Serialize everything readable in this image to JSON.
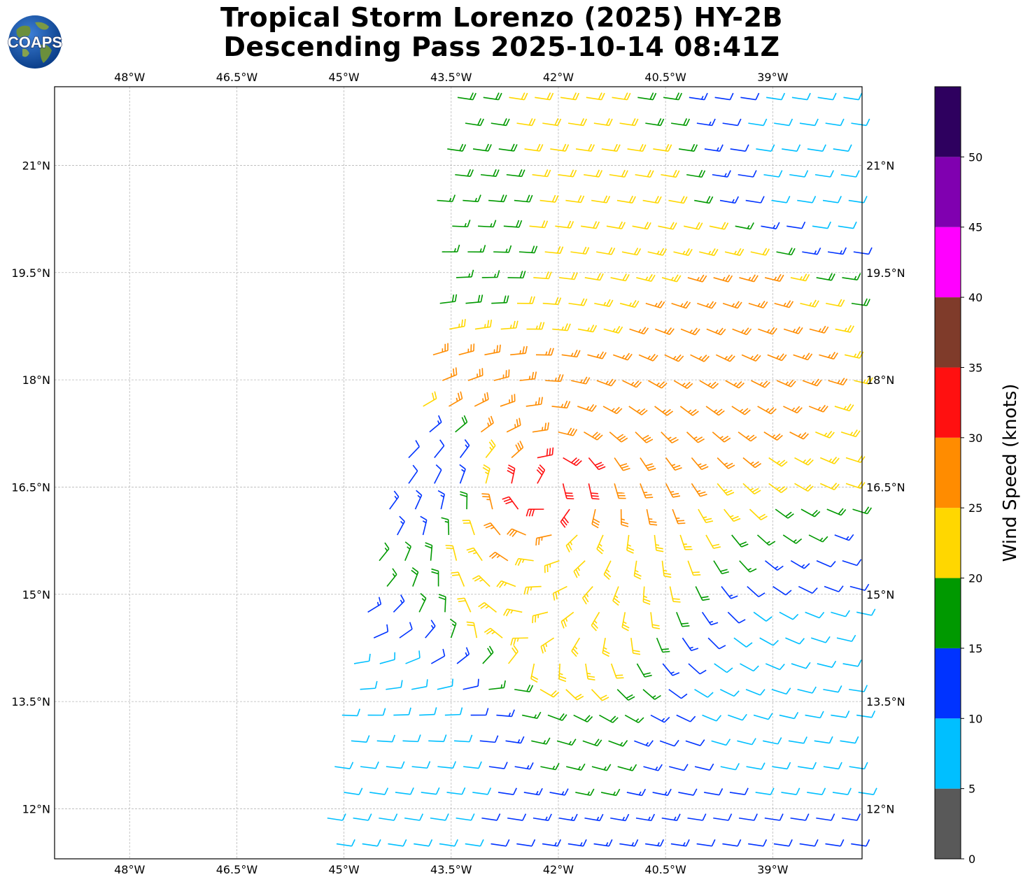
{
  "title": {
    "line1": "Tropical Storm Lorenzo (2025) HY-2B",
    "line2": "Descending Pass 2025-10-14 08:41Z"
  },
  "logo": {
    "text": "COAPS",
    "icon": "globe-logo-icon"
  },
  "colorbar": {
    "label": "Wind Speed (knots)",
    "tick_labels": [
      "0",
      "5",
      "10",
      "15",
      "20",
      "25",
      "30",
      "35",
      "40",
      "45",
      "50"
    ],
    "bins": [
      {
        "min": 0,
        "max": 5,
        "color": "#595959"
      },
      {
        "min": 5,
        "max": 10,
        "color": "#00bfff"
      },
      {
        "min": 10,
        "max": 15,
        "color": "#0033ff"
      },
      {
        "min": 15,
        "max": 20,
        "color": "#009900"
      },
      {
        "min": 20,
        "max": 25,
        "color": "#ffd700"
      },
      {
        "min": 25,
        "max": 30,
        "color": "#ff8c00"
      },
      {
        "min": 30,
        "max": 35,
        "color": "#ff1010"
      },
      {
        "min": 35,
        "max": 40,
        "color": "#7f3b2a"
      },
      {
        "min": 40,
        "max": 45,
        "color": "#ff00ff"
      },
      {
        "min": 45,
        "max": 50,
        "color": "#8000b0"
      },
      {
        "min": 50,
        "max": 55,
        "color": "#2e005f"
      }
    ]
  },
  "chart_data": {
    "type": "wind-barbs",
    "xlim": [
      -49.05,
      -37.75
    ],
    "ylim": [
      11.3,
      22.1
    ],
    "x_ticks": [
      -48,
      -46.5,
      -45,
      -43.5,
      -42,
      -40.5,
      -39
    ],
    "x_tick_labels": [
      "48°W",
      "46.5°W",
      "45°W",
      "43.5°W",
      "42°W",
      "40.5°W",
      "39°W"
    ],
    "y_ticks": [
      12,
      13.5,
      15,
      16.5,
      18,
      19.5,
      21
    ],
    "y_tick_labels": [
      "12°N",
      "13.5°N",
      "15°N",
      "16.5°N",
      "18°N",
      "19.5°N",
      "21°N"
    ],
    "grid": true,
    "storm_center": {
      "lon": -42.2,
      "lat": 16.5
    },
    "swath_west_edge": [
      {
        "lat": 22.0,
        "lon": -43.4
      },
      {
        "lat": 20.5,
        "lon": -43.7
      },
      {
        "lat": 19.5,
        "lon": -43.6
      },
      {
        "lat": 18.0,
        "lon": -43.8
      },
      {
        "lat": 17.0,
        "lon": -44.05
      },
      {
        "lat": 16.5,
        "lon": -44.3
      },
      {
        "lat": 15.0,
        "lon": -44.6
      },
      {
        "lat": 13.5,
        "lon": -45.0
      },
      {
        "lat": 11.4,
        "lon": -45.3
      }
    ],
    "wind_samples": [
      {
        "lon": -42.2,
        "lat": 16.5,
        "speed_kt": 32
      },
      {
        "lon": -42.6,
        "lat": 17.5,
        "speed_kt": 27
      },
      {
        "lon": -43.3,
        "lat": 17.9,
        "speed_kt": 26
      },
      {
        "lon": -41.8,
        "lat": 15.5,
        "speed_kt": 24
      },
      {
        "lon": -39.7,
        "lat": 18.7,
        "speed_kt": 27
      },
      {
        "lon": -41.7,
        "lat": 20.2,
        "speed_kt": 22
      },
      {
        "lon": -43.3,
        "lat": 19.8,
        "speed_kt": 17
      },
      {
        "lon": -43.8,
        "lat": 16.8,
        "speed_kt": 12
      },
      {
        "lon": -44.7,
        "lat": 13.0,
        "speed_kt": 8
      },
      {
        "lon": -39.0,
        "lat": 13.8,
        "speed_kt": 9
      },
      {
        "lon": -38.5,
        "lat": 21.0,
        "speed_kt": 9
      }
    ]
  }
}
